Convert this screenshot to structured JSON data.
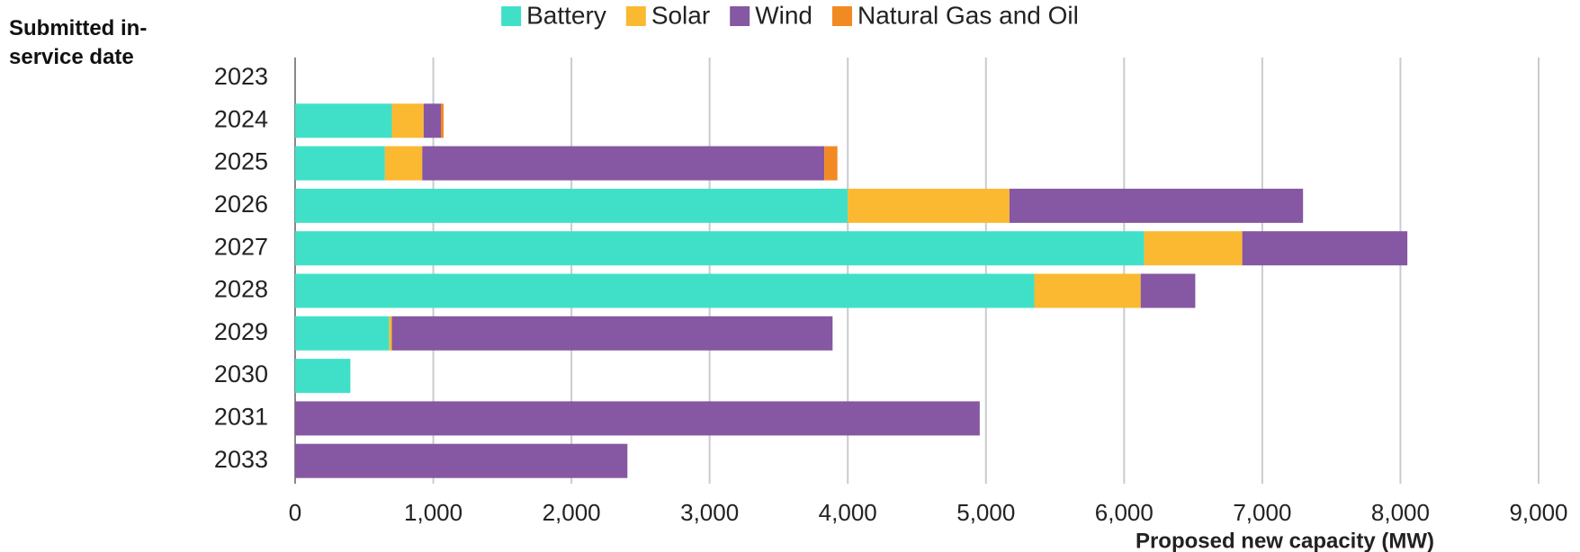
{
  "chart_data": {
    "type": "stacked_bar_horizontal",
    "y_label": "Submitted in-service date",
    "x_label": "Proposed new capacity (MW)",
    "categories": [
      "2023",
      "2024",
      "2025",
      "2026",
      "2027",
      "2028",
      "2029",
      "2030",
      "2031",
      "2033"
    ],
    "series": [
      {
        "name": "Battery",
        "color": "#40e0c8",
        "values": [
          0,
          700,
          650,
          4000,
          6145,
          5350,
          680,
          400,
          0,
          0
        ]
      },
      {
        "name": "Solar",
        "color": "#fbb931",
        "values": [
          0,
          230,
          270,
          1170,
          710,
          770,
          20,
          0,
          0,
          0
        ]
      },
      {
        "name": "Wind",
        "color": "#8657a2",
        "values": [
          0,
          125,
          2910,
          2125,
          1195,
          395,
          3190,
          0,
          4955,
          2405
        ]
      },
      {
        "name": "Natural Gas and Oil",
        "color": "#f28a24",
        "values": [
          0,
          20,
          95,
          0,
          0,
          0,
          0,
          0,
          0,
          0
        ]
      }
    ],
    "xlim": [
      0,
      9000
    ],
    "xticks": [
      0,
      {
        "value": 1000,
        "label": "1,000"
      },
      {
        "value": 2000,
        "label": "2,000"
      },
      {
        "value": 3000,
        "label": "3,000"
      },
      {
        "value": 4000,
        "label": "4,000"
      },
      {
        "value": 5000,
        "label": "5,000"
      },
      {
        "value": 6000,
        "label": "6,000"
      },
      {
        "value": 7000,
        "label": "7,000"
      },
      {
        "value": 8000,
        "label": "8,000"
      },
      {
        "value": 9000,
        "label": "9,000"
      }
    ],
    "grid": true,
    "legend": "top"
  }
}
